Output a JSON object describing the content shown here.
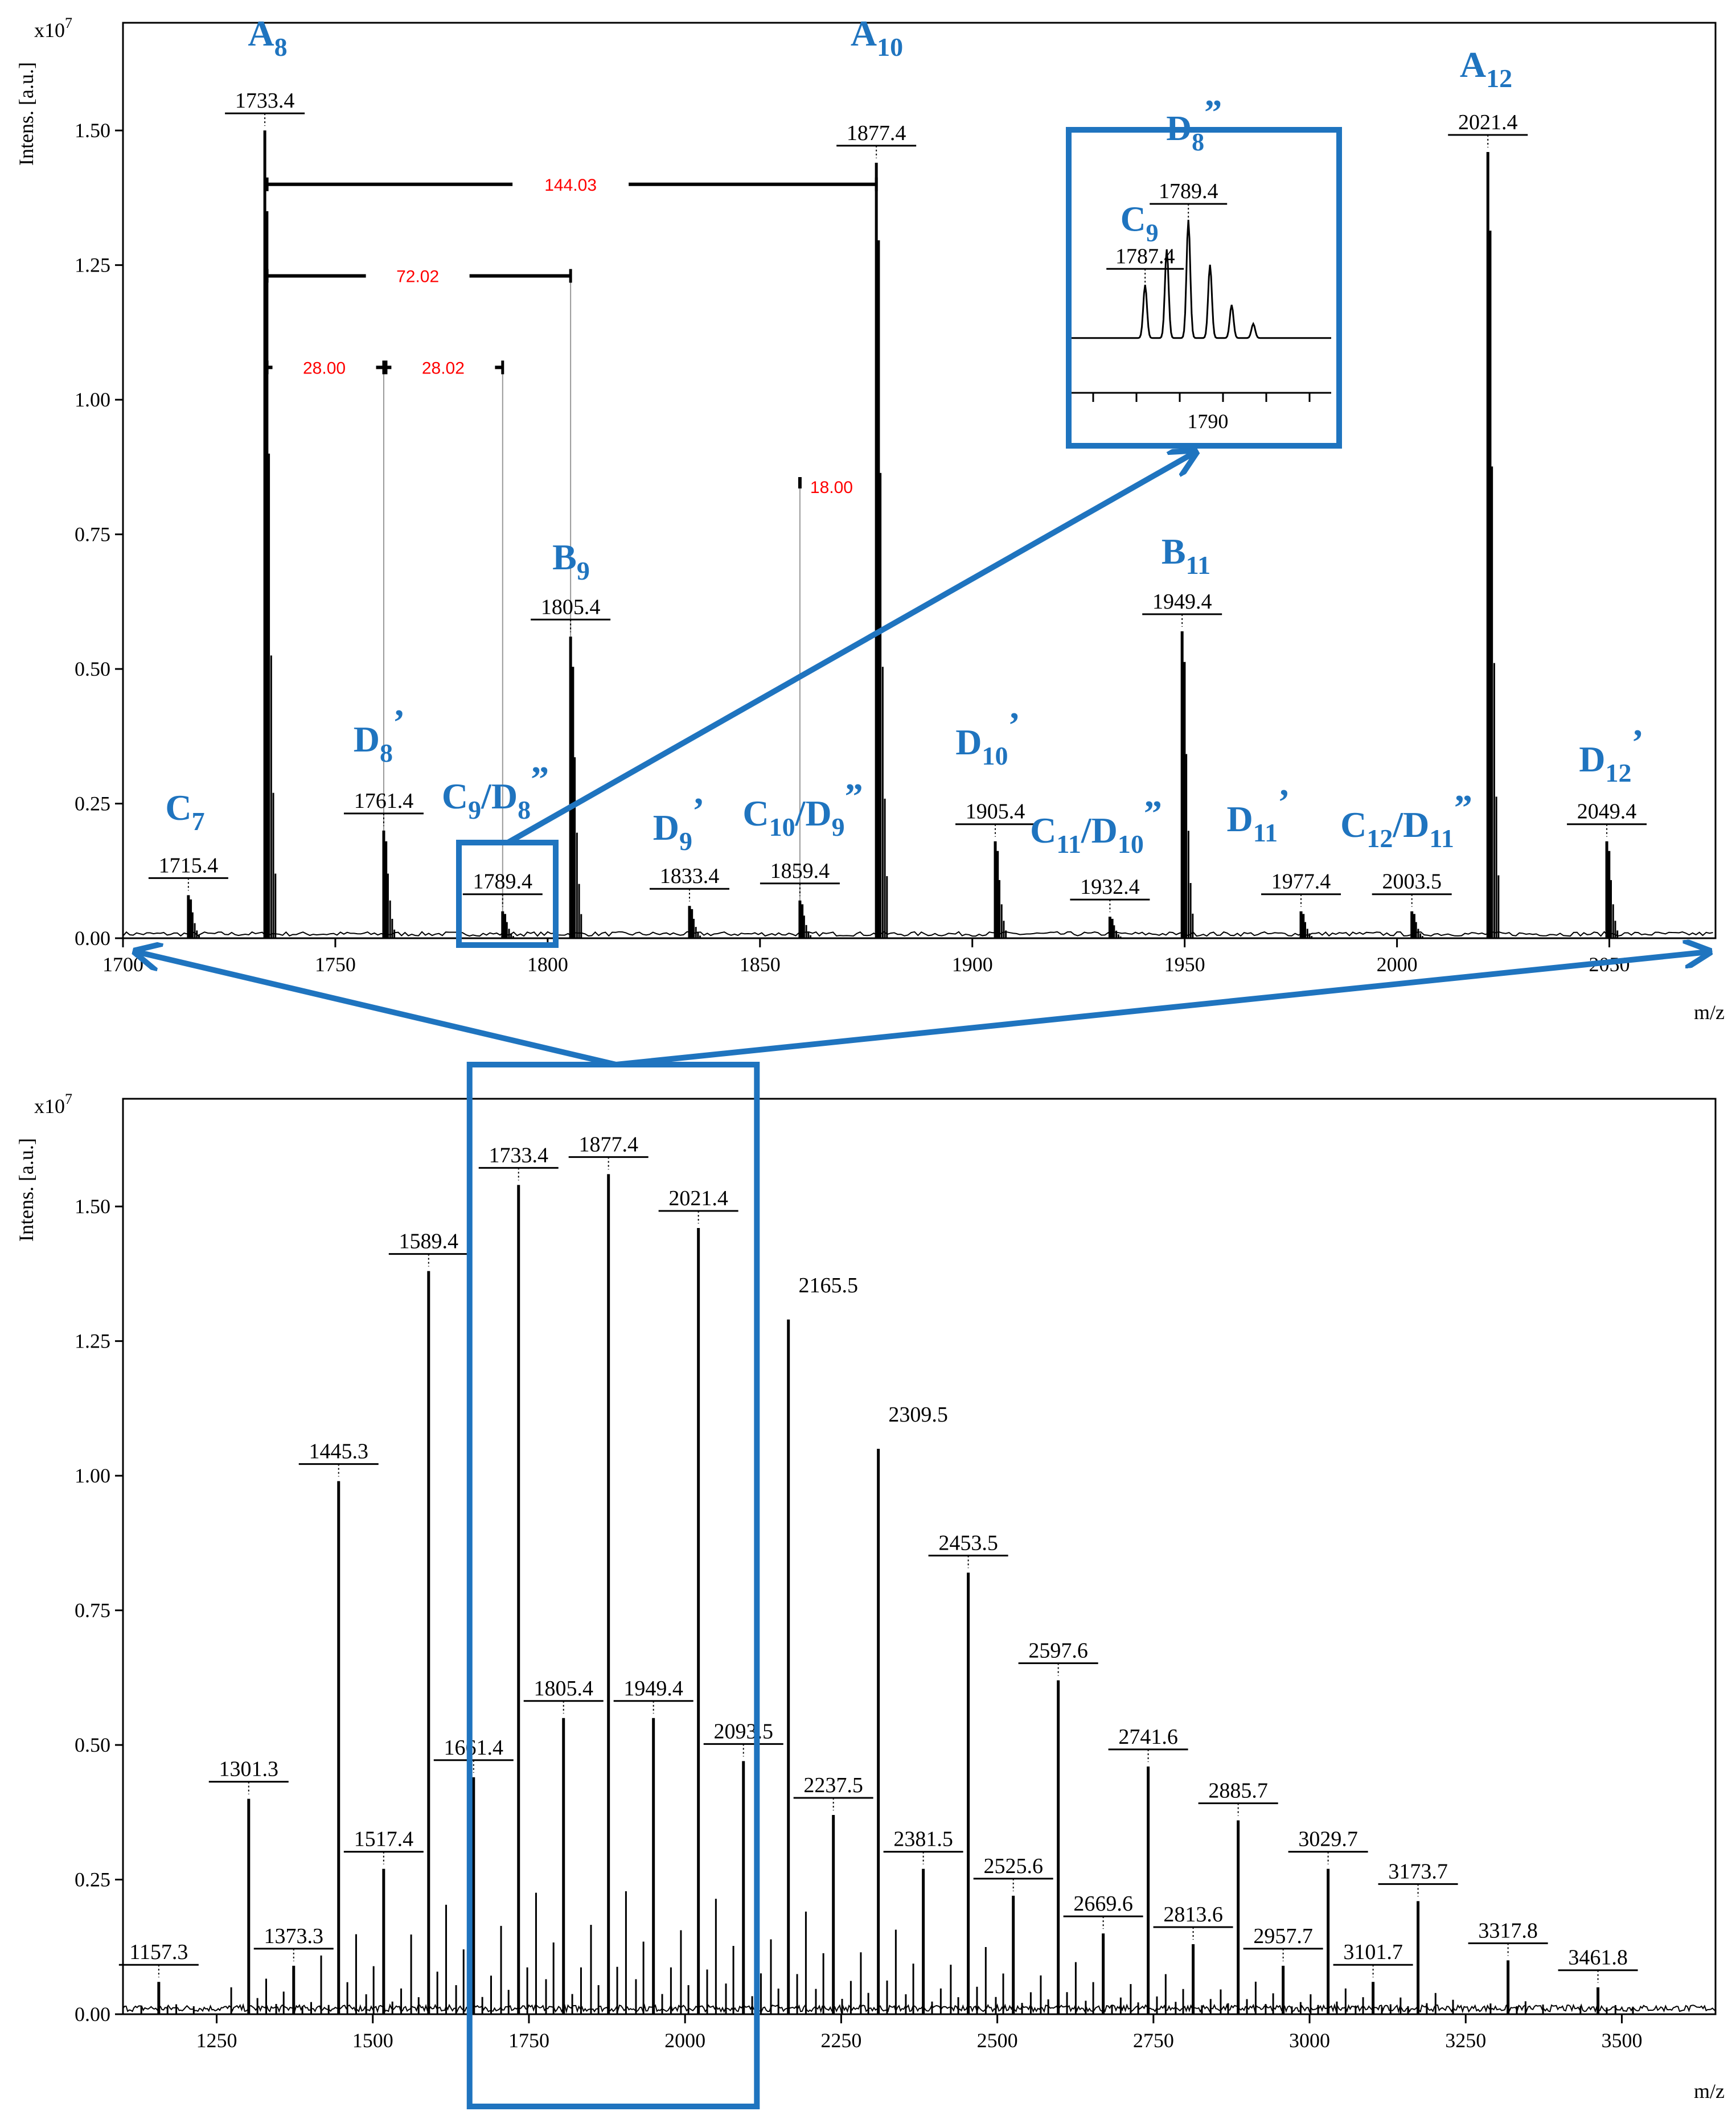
{
  "colors": {
    "spectrum": "#000000",
    "annotation_blue": "#1f74bf",
    "distance_label": "#ff0000",
    "guide_line": "#999999"
  },
  "chart_data": [
    {
      "type": "line",
      "title": "",
      "xlabel": "m/z",
      "ylabel": "Intens. [a.u.]",
      "y_scale": "x10^7",
      "y_scale_base": "x10",
      "y_scale_exp": "7",
      "xlim": [
        1700,
        2075
      ],
      "ylim": [
        0,
        1.7
      ],
      "x_ticks": [
        1700,
        1750,
        1800,
        1850,
        1900,
        1950,
        2000,
        2050
      ],
      "y_ticks": [
        "0.00",
        "0.25",
        "0.50",
        "0.75",
        "1.00",
        "1.25",
        "1.50"
      ],
      "peaks": [
        {
          "mz": 1715.4,
          "intensity": 0.08,
          "label": "1715.4",
          "series": "C",
          "sub": "7",
          "prime": ""
        },
        {
          "mz": 1733.4,
          "intensity": 1.5,
          "label": "1733.4",
          "series": "A",
          "sub": "8",
          "prime": ""
        },
        {
          "mz": 1761.4,
          "intensity": 0.2,
          "label": "1761.4",
          "series": "D",
          "sub": "8",
          "prime": "’"
        },
        {
          "mz": 1789.4,
          "intensity": 0.05,
          "label": "1789.4",
          "series": "C9/D8",
          "sub": "",
          "prime": "”"
        },
        {
          "mz": 1805.4,
          "intensity": 0.56,
          "label": "1805.4",
          "series": "B",
          "sub": "9",
          "prime": ""
        },
        {
          "mz": 1833.4,
          "intensity": 0.06,
          "label": "1833.4",
          "series": "D",
          "sub": "9",
          "prime": "’"
        },
        {
          "mz": 1859.4,
          "intensity": 0.07,
          "label": "1859.4",
          "series": "C10/D9",
          "sub": "",
          "prime": "”"
        },
        {
          "mz": 1877.4,
          "intensity": 1.44,
          "label": "1877.4",
          "series": "A",
          "sub": "10",
          "prime": ""
        },
        {
          "mz": 1905.4,
          "intensity": 0.18,
          "label": "1905.4",
          "series": "D",
          "sub": "10",
          "prime": "’"
        },
        {
          "mz": 1932.4,
          "intensity": 0.04,
          "label": "1932.4",
          "series": "C11/D10",
          "sub": "",
          "prime": "”"
        },
        {
          "mz": 1949.4,
          "intensity": 0.57,
          "label": "1949.4",
          "series": "B",
          "sub": "11",
          "prime": ""
        },
        {
          "mz": 1977.4,
          "intensity": 0.05,
          "label": "1977.4",
          "series": "D",
          "sub": "11",
          "prime": "’"
        },
        {
          "mz": 2003.5,
          "intensity": 0.05,
          "label": "2003.5",
          "series": "C12/D11",
          "sub": "",
          "prime": "”"
        },
        {
          "mz": 2021.4,
          "intensity": 1.46,
          "label": "2021.4",
          "series": "A",
          "sub": "12",
          "prime": ""
        },
        {
          "mz": 2049.4,
          "intensity": 0.18,
          "label": "2049.4",
          "series": "D",
          "sub": "12",
          "prime": "’"
        }
      ],
      "peak_names": {
        "A8": "A",
        "A8_sub": "8",
        "A10": "A",
        "A10_sub": "10",
        "A12": "A",
        "A12_sub": "12",
        "B9": "B",
        "B9_sub": "9",
        "B11": "B",
        "B11_sub": "11",
        "C7": "C",
        "C7_sub": "7",
        "D8": "D",
        "D8_sub": "8",
        "D9": "D",
        "D9_sub": "9",
        "D10": "D",
        "D10_sub": "10",
        "D11": "D",
        "D11_sub": "11",
        "D12": "D",
        "D12_sub": "12",
        "C9D8_a": "C",
        "C9D8_a_sub": "9",
        "C9D8_b": "/D",
        "C9D8_b_sub": "8",
        "C10D9_a": "C",
        "C10D9_a_sub": "10",
        "C10D9_b": "/D",
        "C10D9_b_sub": "9",
        "C11D10_a": "C",
        "C11D10_a_sub": "11",
        "C11D10_b": "/D",
        "C11D10_b_sub": "10",
        "C12D11_a": "C",
        "C12D11_a_sub": "12",
        "C12D11_b": "/D",
        "C12D11_b_sub": "11",
        "prime1": "’",
        "prime2": "”"
      },
      "mass_differences": [
        {
          "label": "144.03",
          "from": 1733.4,
          "to": 1877.4,
          "level": 1.4
        },
        {
          "label": "72.02",
          "from": 1733.4,
          "to": 1805.4,
          "level": 1.23
        },
        {
          "label": "28.00",
          "from": 1733.4,
          "to": 1761.4,
          "level": 1.06
        },
        {
          "label": "28.02",
          "from": 1761.4,
          "to": 1789.4,
          "level": 1.06
        },
        {
          "label": "18.00",
          "from": 1859.4,
          "to": 1877.4,
          "level": 0.85
        }
      ],
      "inset": {
        "xlabel_tick": "1790",
        "peaks": [
          {
            "mz": 1787.4,
            "label": "1787.4",
            "name": "C",
            "sub": "9",
            "prime": ""
          },
          {
            "mz": 1789.4,
            "label": "1789.4",
            "name": "D",
            "sub": "8",
            "prime": "”"
          }
        ]
      }
    },
    {
      "type": "line",
      "title": "",
      "xlabel": "m/z",
      "ylabel": "Intens. [a.u.]",
      "y_scale": "x10^7",
      "y_scale_base": "x10",
      "y_scale_exp": "7",
      "xlim": [
        1100,
        3650
      ],
      "ylim": [
        0,
        1.7
      ],
      "x_ticks": [
        1250,
        1500,
        1750,
        2000,
        2250,
        2500,
        2750,
        3000,
        3250,
        3500
      ],
      "y_ticks": [
        "0.00",
        "0.25",
        "0.50",
        "0.75",
        "1.00",
        "1.25",
        "1.50"
      ],
      "peaks": [
        {
          "mz": 1157.3,
          "intensity": 0.06,
          "label": "1157.3"
        },
        {
          "mz": 1301.3,
          "intensity": 0.4,
          "label": "1301.3"
        },
        {
          "mz": 1373.3,
          "intensity": 0.09,
          "label": "1373.3"
        },
        {
          "mz": 1445.3,
          "intensity": 0.99,
          "label": "1445.3"
        },
        {
          "mz": 1517.4,
          "intensity": 0.27,
          "label": "1517.4"
        },
        {
          "mz": 1589.4,
          "intensity": 1.38,
          "label": "1589.4"
        },
        {
          "mz": 1661.4,
          "intensity": 0.44,
          "label": "1661.4"
        },
        {
          "mz": 1733.4,
          "intensity": 1.54,
          "label": "1733.4"
        },
        {
          "mz": 1805.4,
          "intensity": 0.55,
          "label": "1805.4"
        },
        {
          "mz": 1877.4,
          "intensity": 1.56,
          "label": "1877.4"
        },
        {
          "mz": 1949.4,
          "intensity": 0.55,
          "label": "1949.4"
        },
        {
          "mz": 2021.4,
          "intensity": 1.46,
          "label": "2021.4"
        },
        {
          "mz": 2093.5,
          "intensity": 0.47,
          "label": "2093.5"
        },
        {
          "mz": 2165.5,
          "intensity": 1.29,
          "label": "2165.5"
        },
        {
          "mz": 2237.5,
          "intensity": 0.37,
          "label": "2237.5"
        },
        {
          "mz": 2309.5,
          "intensity": 1.05,
          "label": "2309.5"
        },
        {
          "mz": 2381.5,
          "intensity": 0.27,
          "label": "2381.5"
        },
        {
          "mz": 2453.5,
          "intensity": 0.82,
          "label": "2453.5"
        },
        {
          "mz": 2525.6,
          "intensity": 0.22,
          "label": "2525.6"
        },
        {
          "mz": 2597.6,
          "intensity": 0.62,
          "label": "2597.6"
        },
        {
          "mz": 2669.6,
          "intensity": 0.15,
          "label": "2669.6"
        },
        {
          "mz": 2741.6,
          "intensity": 0.46,
          "label": "2741.6"
        },
        {
          "mz": 2813.6,
          "intensity": 0.13,
          "label": "2813.6"
        },
        {
          "mz": 2885.7,
          "intensity": 0.36,
          "label": "2885.7"
        },
        {
          "mz": 2957.7,
          "intensity": 0.09,
          "label": "2957.7"
        },
        {
          "mz": 3029.7,
          "intensity": 0.27,
          "label": "3029.7"
        },
        {
          "mz": 3101.7,
          "intensity": 0.06,
          "label": "3101.7"
        },
        {
          "mz": 3173.7,
          "intensity": 0.21,
          "label": "3173.7"
        },
        {
          "mz": 3317.8,
          "intensity": 0.1,
          "label": "3317.8"
        },
        {
          "mz": 3461.8,
          "intensity": 0.05,
          "label": "3461.8"
        }
      ],
      "zoom_region": [
        1655,
        2115
      ]
    }
  ]
}
